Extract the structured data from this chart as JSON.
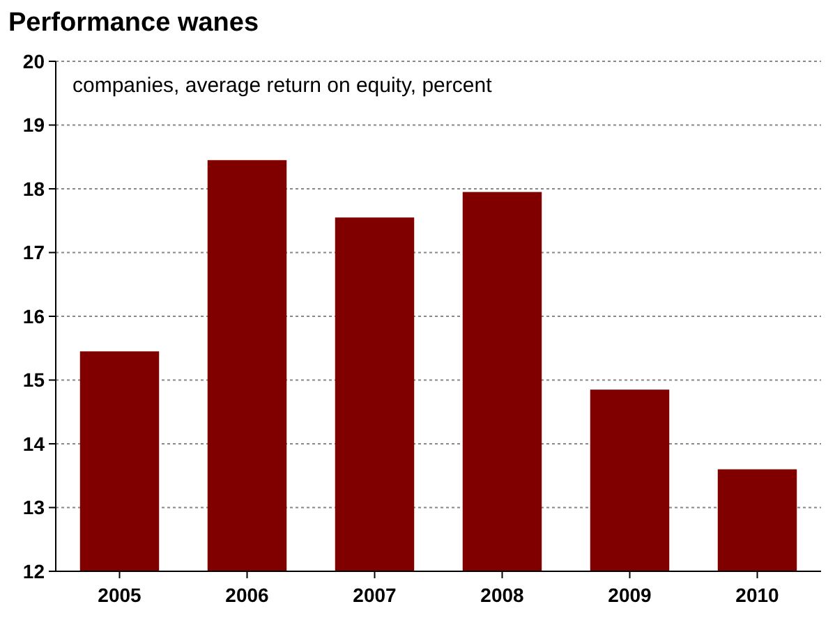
{
  "chart_data": {
    "type": "bar",
    "title": "Performance wanes",
    "subtitle": "companies, average return on equity, percent",
    "categories": [
      "2005",
      "2006",
      "2007",
      "2008",
      "2009",
      "2010"
    ],
    "values": [
      15.45,
      18.45,
      17.55,
      17.95,
      14.85,
      13.6
    ],
    "color": "#800000",
    "ylim": [
      12,
      20
    ],
    "yticks": [
      12,
      13,
      14,
      15,
      16,
      17,
      18,
      19,
      20
    ],
    "grid": "y"
  }
}
